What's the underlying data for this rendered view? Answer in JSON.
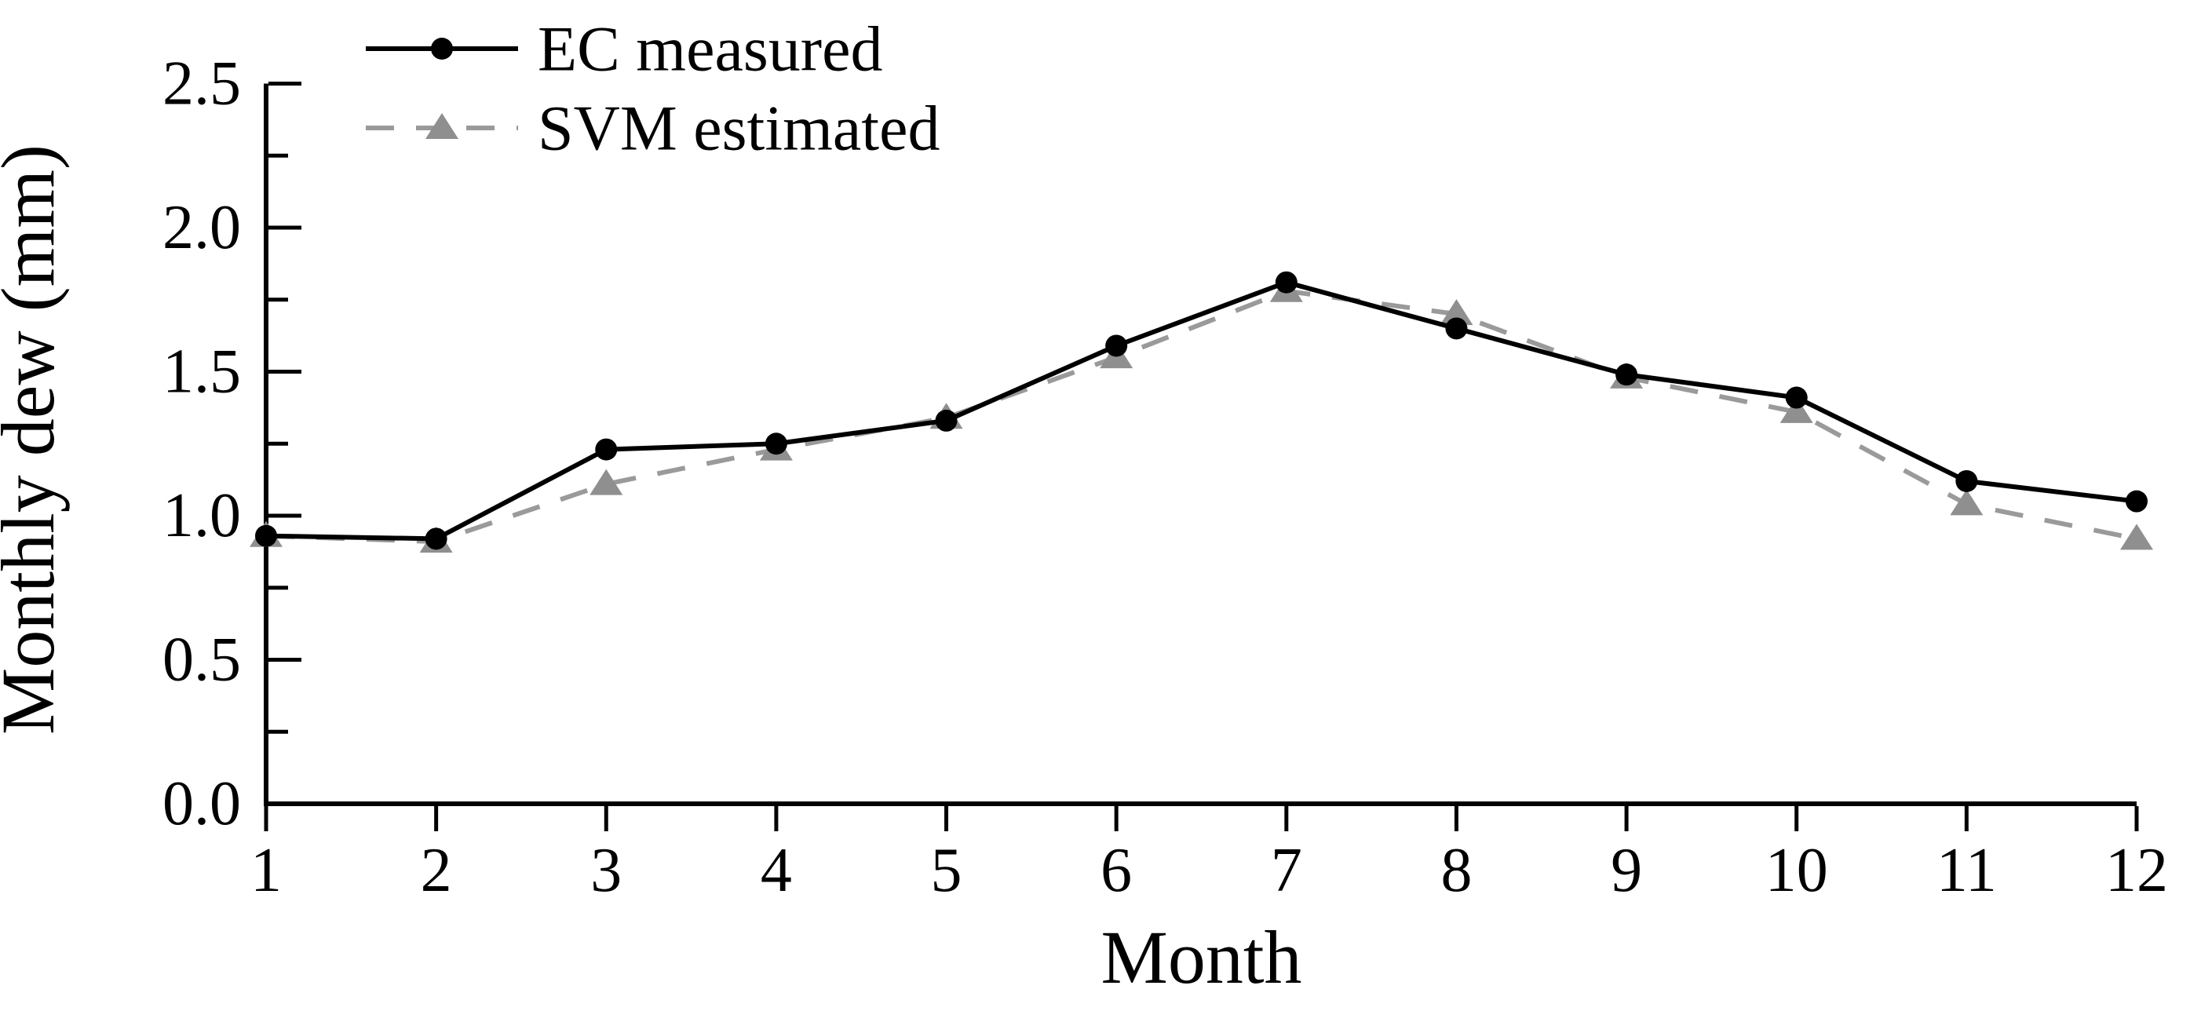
{
  "chart_data": {
    "type": "line",
    "title": "",
    "xlabel": "Month",
    "ylabel": "Monthly dew (mm)",
    "x": [
      1,
      2,
      3,
      4,
      5,
      6,
      7,
      8,
      9,
      10,
      11,
      12
    ],
    "xtick_labels": [
      "1",
      "2",
      "3",
      "4",
      "5",
      "6",
      "7",
      "8",
      "9",
      "10",
      "11",
      "12"
    ],
    "xlim": [
      1,
      12
    ],
    "ylim": [
      0,
      2.5
    ],
    "yticks": [
      0.0,
      0.5,
      1.0,
      1.5,
      2.0,
      2.5
    ],
    "ytick_labels": [
      "0.0",
      "0.5",
      "1.0",
      "1.5",
      "2.0",
      "2.5"
    ],
    "yminor_ticks": [
      0.25,
      0.75,
      1.25,
      1.75,
      2.25
    ],
    "grid": false,
    "legend_position": "top-left-inside",
    "axis_color": "#000000",
    "series": [
      {
        "name": "EC measured",
        "line_style": "solid",
        "line_color": "#000000",
        "marker": "circle",
        "marker_color": "#000000",
        "values": [
          0.93,
          0.92,
          1.23,
          1.25,
          1.33,
          1.59,
          1.81,
          1.65,
          1.49,
          1.41,
          1.12,
          1.05
        ]
      },
      {
        "name": "SVM estimated",
        "line_style": "dashed",
        "line_color": "#9a9a9a",
        "marker": "triangle",
        "marker_color": "#8f8f8f",
        "values": [
          0.93,
          0.91,
          1.11,
          1.23,
          1.34,
          1.55,
          1.78,
          1.7,
          1.48,
          1.36,
          1.04,
          0.92
        ]
      }
    ]
  }
}
